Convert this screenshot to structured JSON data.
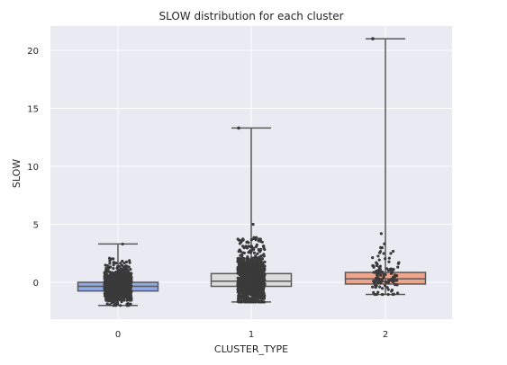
{
  "chart_data": {
    "type": "box",
    "title": "SLOW distribution for each cluster",
    "xlabel": "CLUSTER_TYPE",
    "ylabel": "SLOW",
    "categories": [
      "0",
      "1",
      "2"
    ],
    "yticks": [
      0,
      5,
      10,
      15,
      20
    ],
    "ylim": [
      -3.1,
      22.1
    ],
    "grid": true,
    "background": "#eaeaf2",
    "boxes": [
      {
        "category": "0",
        "color": "#8fa8e8",
        "whisker_low": -2.0,
        "q1": -0.75,
        "median": -0.35,
        "q3": 0.0,
        "whisker_high": 3.3
      },
      {
        "category": "1",
        "color": "#dcdcdc",
        "whisker_low": -1.7,
        "q1": -0.35,
        "median": 0.1,
        "q3": 0.75,
        "whisker_high": 13.3
      },
      {
        "category": "2",
        "color": "#eea58d",
        "whisker_low": -1.05,
        "q1": -0.15,
        "median": 0.3,
        "q3": 0.85,
        "whisker_high": 21.0
      }
    ],
    "strip_points": [
      {
        "category": "0",
        "count": 900,
        "y_min": -2.0,
        "y_max": 3.3,
        "spread": [
          -0.75,
          1.9
        ]
      },
      {
        "category": "1",
        "count": 1200,
        "y_min": -1.7,
        "y_max": 5.0,
        "spread": [
          -0.4,
          3.6
        ]
      },
      {
        "category": "2",
        "count": 120,
        "y_min": -1.05,
        "y_max": 4.2,
        "spread": [
          -0.15,
          3.2
        ]
      }
    ],
    "outliers": [
      {
        "category": "1",
        "y": 13.3
      },
      {
        "category": "2",
        "y": 21.0
      }
    ],
    "point_color": "#3a3a3a"
  }
}
